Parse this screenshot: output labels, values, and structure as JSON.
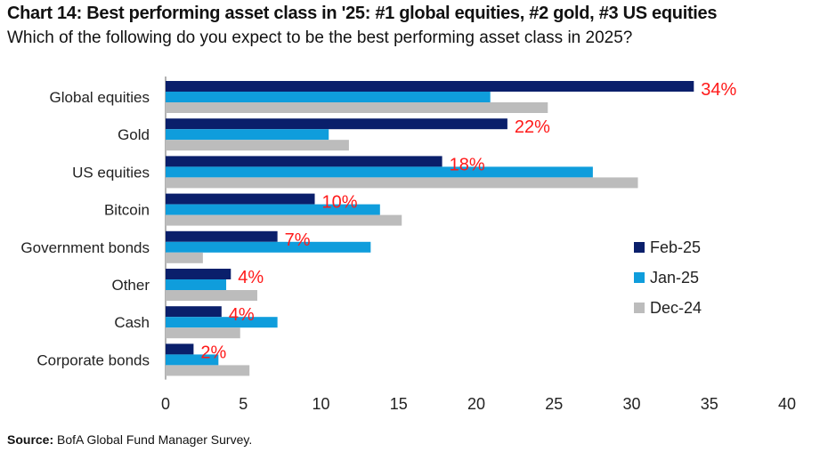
{
  "chart_data": {
    "type": "bar",
    "orientation": "horizontal",
    "title": "Chart 14: Best performing asset class in '25: #1 global equities, #2 gold, #3 US equities",
    "subtitle": "Which of the following do you expect to be the best performing asset class in 2025?",
    "categories": [
      "Global equities",
      "Gold",
      "US equities",
      "Bitcoin",
      "Government bonds",
      "Other",
      "Cash",
      "Corporate bonds"
    ],
    "series": [
      {
        "name": "Feb-25",
        "color": "#0a1f6b",
        "values": [
          34,
          22,
          17.8,
          9.6,
          7.2,
          4.2,
          3.6,
          1.8
        ]
      },
      {
        "name": "Jan-25",
        "color": "#0f9ddc",
        "values": [
          20.9,
          10.5,
          27.5,
          13.8,
          13.2,
          3.9,
          7.2,
          3.4
        ]
      },
      {
        "name": "Dec-24",
        "color": "#bcbcbc",
        "values": [
          24.6,
          11.8,
          30.4,
          15.2,
          2.4,
          5.9,
          4.8,
          5.4
        ]
      }
    ],
    "data_labels": [
      "34%",
      "22%",
      "18%",
      "10%",
      "7%",
      "4%",
      "4%",
      "2%"
    ],
    "xticks": [
      0,
      5,
      10,
      15,
      20,
      25,
      30,
      35,
      40
    ],
    "xlim": [
      0,
      40
    ],
    "grid": false,
    "legend_position": "right"
  },
  "source": {
    "label": "Source:",
    "text": "BofA Global Fund Manager Survey."
  }
}
